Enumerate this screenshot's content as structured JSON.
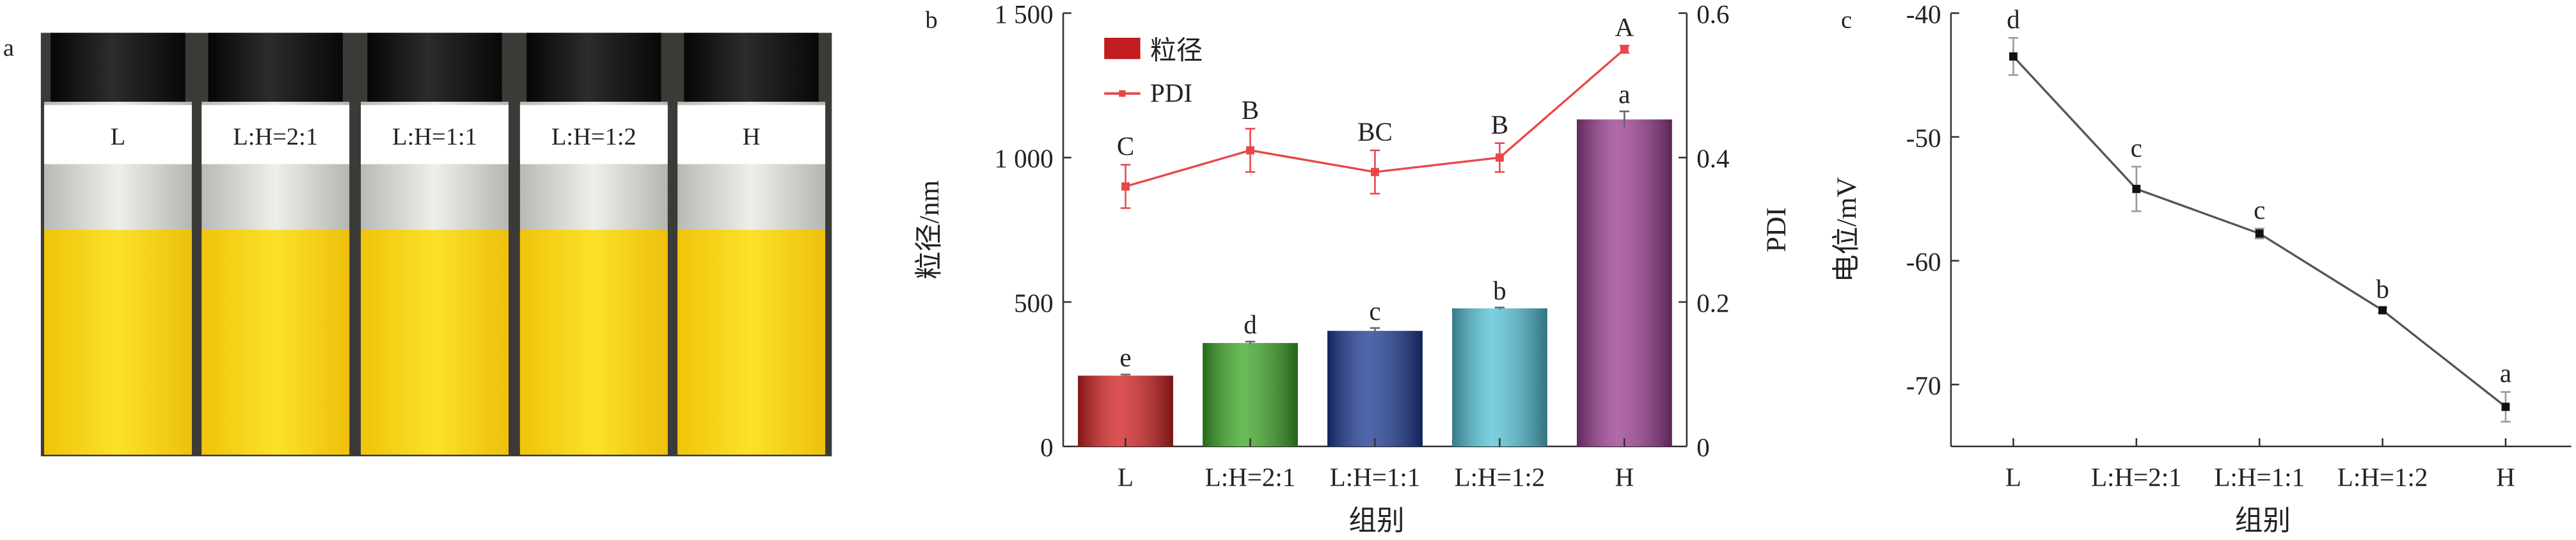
{
  "panel_labels": {
    "a": "a",
    "b": "b",
    "c": "c"
  },
  "panel_a": {
    "samples": [
      "L",
      "L:H=2:1",
      "L:H=1:1",
      "L:H=1:2",
      "H"
    ],
    "colors": {
      "cap": "#151515",
      "liquid": "#f5d415",
      "glass": "#d9dad6",
      "background": "#3c3a37"
    }
  },
  "chart_data": [
    {
      "type": "bar",
      "panel": "b",
      "categories": [
        "L",
        "L:H=2:1",
        "L:H=1:1",
        "L:H=1:2",
        "H"
      ],
      "xlabel": "组别",
      "ylabel": "粒径/nm",
      "y2label": "PDI",
      "ylim": [
        0,
        1500
      ],
      "y2lim": [
        0,
        0.6
      ],
      "yticks": [
        "0",
        "500",
        "1 000",
        "1 500"
      ],
      "y2ticks": [
        "0",
        "0.2",
        "0.4",
        "0.6"
      ],
      "legend_position": "top-left",
      "series": [
        {
          "name": "粒径",
          "type": "bar",
          "values": [
            245,
            358,
            400,
            478,
            1132
          ],
          "errors": [
            4,
            5,
            10,
            3,
            28
          ],
          "letters": [
            "e",
            "d",
            "c",
            "b",
            "a"
          ],
          "colors": [
            "#d42223",
            "#3fa828",
            "#1f3b96",
            "#55c4d9",
            "#9c3f92"
          ]
        },
        {
          "name": "PDI",
          "type": "line",
          "axis": "right",
          "color": "#e8474a",
          "values": [
            0.36,
            0.41,
            0.38,
            0.4,
            0.55
          ],
          "errors": [
            0.03,
            0.03,
            0.03,
            0.02,
            0.005
          ],
          "letters": [
            "C",
            "B",
            "BC",
            "B",
            "A"
          ]
        }
      ]
    },
    {
      "type": "line",
      "panel": "c",
      "categories": [
        "L",
        "L:H=2:1",
        "L:H=1:1",
        "L:H=1:2",
        "H"
      ],
      "xlabel": "组别",
      "ylabel": "电位/mV",
      "ylim": [
        -75,
        -40
      ],
      "yticks": [
        "-70",
        "-60",
        "-50",
        "-40"
      ],
      "series": [
        {
          "values": [
            -43.5,
            -54.2,
            -57.8,
            -64.0,
            -71.8
          ],
          "errors": [
            1.5,
            1.8,
            0.4,
            0.2,
            1.2
          ],
          "letters": [
            "d",
            "c",
            "c",
            "b",
            "a"
          ],
          "color": "#555555"
        }
      ]
    }
  ]
}
